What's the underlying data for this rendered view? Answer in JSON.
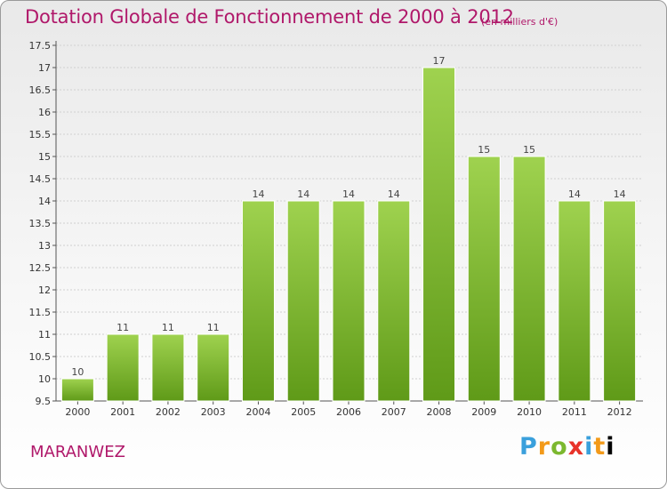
{
  "header": {
    "title": "Dotation Globale de Fonctionnement de 2000 à 2012",
    "subtitle": "(en milliers d'€)"
  },
  "footer": {
    "commune": "MARANWEZ",
    "brand_letters": [
      "P",
      "r",
      "o",
      "x",
      "i",
      "t",
      "i"
    ]
  },
  "colors": {
    "title": "#b0186a",
    "bar_top": "#9fd24f",
    "bar_bottom": "#5f9a18"
  },
  "chart_data": {
    "type": "bar",
    "title": "Dotation Globale de Fonctionnement de 2000 à 2012",
    "subtitle": "(en milliers d'€)",
    "categories": [
      "2000",
      "2001",
      "2002",
      "2003",
      "2004",
      "2005",
      "2006",
      "2007",
      "2008",
      "2009",
      "2010",
      "2011",
      "2012"
    ],
    "values": [
      10,
      11,
      11,
      11,
      14,
      14,
      14,
      14,
      17,
      15,
      15,
      14,
      14
    ],
    "data_labels": [
      "10",
      "11",
      "11",
      "11",
      "14",
      "14",
      "14",
      "14",
      "17",
      "15",
      "15",
      "14",
      "14"
    ],
    "yticks": [
      "9.5",
      "10",
      "10.5",
      "11",
      "11.5",
      "12",
      "12.5",
      "13",
      "13.5",
      "14",
      "14.5",
      "15",
      "15.5",
      "16",
      "16.5",
      "17",
      "17.5"
    ],
    "ylim": [
      9.5,
      17.5
    ],
    "grid": true,
    "legend": "none"
  }
}
